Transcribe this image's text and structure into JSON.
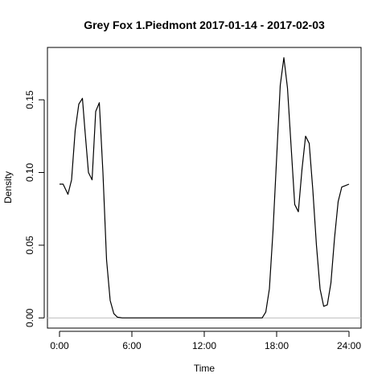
{
  "chart_data": {
    "type": "line",
    "title": "Grey Fox 1.Piedmont 2017-01-14 - 2017-02-03",
    "xlabel": "Time",
    "ylabel": "Density",
    "xlim": [
      -1,
      25
    ],
    "ylim": [
      -0.007,
      0.186
    ],
    "x_ticks": [
      {
        "value": 0,
        "label": "0:00"
      },
      {
        "value": 6,
        "label": "6:00"
      },
      {
        "value": 12,
        "label": "12:00"
      },
      {
        "value": 18,
        "label": "18:00"
      },
      {
        "value": 24,
        "label": "24:00"
      }
    ],
    "y_ticks": [
      {
        "value": 0.0,
        "label": "0.00"
      },
      {
        "value": 0.05,
        "label": "0.05"
      },
      {
        "value": 0.1,
        "label": "0.10"
      },
      {
        "value": 0.15,
        "label": "0.15"
      }
    ],
    "reference_line_y": 0,
    "series": [
      {
        "x": [
          0,
          0.3,
          0.7,
          1.0,
          1.3,
          1.6,
          1.9,
          2.1,
          2.4,
          2.7,
          3.0,
          3.3,
          3.6,
          3.9,
          4.2,
          4.5,
          4.8,
          5.2,
          6,
          8,
          10,
          12,
          14,
          16,
          16.8,
          17.1,
          17.4,
          17.7,
          18.0,
          18.3,
          18.6,
          18.9,
          19.2,
          19.5,
          19.8,
          20.1,
          20.4,
          20.7,
          21.0,
          21.3,
          21.6,
          21.9,
          22.2,
          22.5,
          22.8,
          23.1,
          23.4,
          23.7,
          24.0
        ],
        "y": [
          0.092,
          0.092,
          0.085,
          0.095,
          0.129,
          0.147,
          0.151,
          0.13,
          0.1,
          0.095,
          0.142,
          0.148,
          0.1,
          0.04,
          0.012,
          0.003,
          0.0005,
          0.0,
          0.0,
          0.0,
          0.0,
          0.0,
          0.0,
          0.0,
          0.0,
          0.004,
          0.02,
          0.06,
          0.11,
          0.16,
          0.179,
          0.158,
          0.118,
          0.078,
          0.073,
          0.102,
          0.125,
          0.12,
          0.088,
          0.05,
          0.02,
          0.008,
          0.009,
          0.024,
          0.055,
          0.08,
          0.09,
          0.091,
          0.092
        ]
      }
    ]
  }
}
